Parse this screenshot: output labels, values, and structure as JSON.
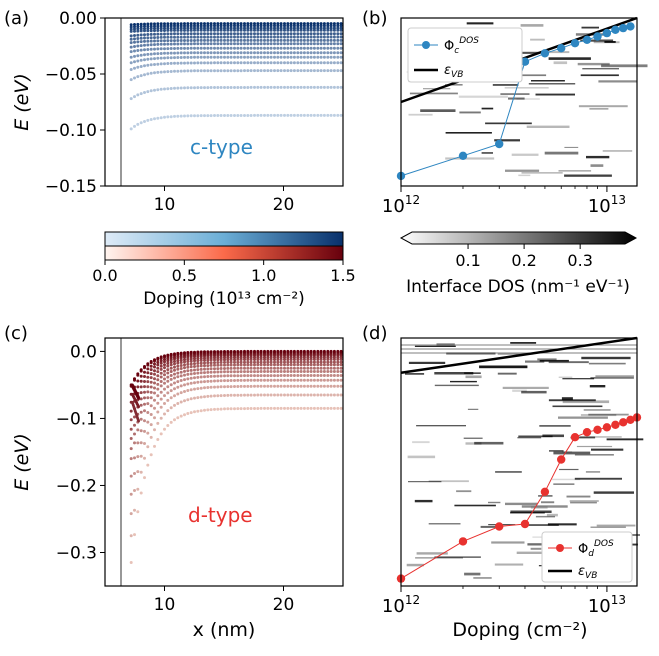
{
  "colors": {
    "ctype": "#2e86c1",
    "dtype": "#e8322f",
    "blue_dark": "#08306b",
    "blue_light": "#d6e6f4",
    "red_dark": "#67000d",
    "red_light": "#fde4d6",
    "vb_line": "#000000"
  },
  "panels": {
    "a": {
      "label": "(a)",
      "ylabel": "E (eV)",
      "yticks": [
        "0.00",
        "−0.05",
        "−0.10",
        "−0.15"
      ],
      "xticks": [
        "10",
        "20"
      ],
      "annotation": "c-type"
    },
    "b": {
      "label": "(b)"
    },
    "c": {
      "label": "(c)",
      "ylabel": "E (eV)",
      "xlabel": "x (nm)",
      "yticks": [
        "0.0",
        "−0.1",
        "−0.2",
        "−0.3"
      ],
      "xticks": [
        "10",
        "20"
      ],
      "annotation": "d-type"
    },
    "d": {
      "label": "(d)",
      "xlabel": "Doping (cm⁻²)"
    }
  },
  "colorbars": {
    "doping": {
      "label": "Doping (10¹³ cm⁻²)",
      "ticks": [
        "0.0",
        "0.5",
        "1.0",
        "1.5"
      ]
    },
    "dos": {
      "label": "Interface DOS (nm⁻¹ eV⁻¹)",
      "ticks": [
        "0.1",
        "0.2",
        "0.3"
      ]
    }
  },
  "log_ticks": {
    "base": "10",
    "exp_low": "12",
    "exp_high": "13"
  },
  "chart_data": [
    {
      "id": "a",
      "type": "scatter",
      "xlabel": "",
      "ylabel": "E (eV)",
      "xlim": [
        5,
        25
      ],
      "ylim": [
        -0.15,
        0.0
      ],
      "doping_values": [
        0.1,
        0.2,
        0.3,
        0.4,
        0.5,
        0.6,
        0.7,
        0.8,
        0.9,
        1.0,
        1.1,
        1.2,
        1.3,
        1.4,
        1.5
      ],
      "plateau_energy": [
        -0.087,
        -0.062,
        -0.047,
        -0.04,
        -0.035,
        -0.031,
        -0.027,
        -0.023,
        -0.02,
        -0.017,
        -0.014,
        -0.011,
        -0.009,
        -0.007,
        -0.005
      ],
      "vertical_line_x": 6.5,
      "annotation": "c-type"
    },
    {
      "id": "b",
      "type": "line",
      "xscale": "log",
      "xlim": [
        1000000000000.0,
        14000000000000.0
      ],
      "series": [
        {
          "name": "Φc DOS",
          "x": [
            1000000000000.0,
            2000000000000.0,
            3000000000000.0,
            4000000000000.0,
            5000000000000.0,
            6000000000000.0,
            7000000000000.0,
            8000000000000.0,
            9000000000000.0,
            10000000000000.0,
            11000000000000.0,
            12000000000000.0,
            13000000000000.0
          ],
          "y": [
            0.06,
            0.18,
            0.25,
            0.74,
            0.79,
            0.82,
            0.85,
            0.87,
            0.89,
            0.91,
            0.93,
            0.94,
            0.95
          ]
        },
        {
          "name": "εVB",
          "x": [
            1000000000000.0,
            14000000000000.0
          ],
          "y": [
            0.5,
            1.0
          ]
        }
      ],
      "legend_position": "top-left"
    },
    {
      "id": "c",
      "type": "scatter",
      "xlabel": "x (nm)",
      "ylabel": "E (eV)",
      "xlim": [
        5,
        25
      ],
      "ylim": [
        -0.35,
        0.02
      ],
      "doping_values": [
        0.1,
        0.2,
        0.3,
        0.4,
        0.5,
        0.6,
        0.7,
        0.8,
        0.9,
        1.0,
        1.1,
        1.2,
        1.3,
        1.4,
        1.5
      ],
      "plateau_energy": [
        -0.085,
        -0.065,
        -0.052,
        -0.043,
        -0.036,
        -0.03,
        -0.025,
        -0.02,
        -0.016,
        -0.012,
        -0.009,
        -0.006,
        -0.004,
        -0.002,
        0.0
      ],
      "vertical_line_x": 6.5,
      "annotation": "d-type"
    },
    {
      "id": "d",
      "type": "line",
      "xscale": "log",
      "xlabel": "Doping (cm⁻²)",
      "xlim": [
        1000000000000.0,
        14000000000000.0
      ],
      "series": [
        {
          "name": "Φd DOS",
          "x": [
            1000000000000.0,
            2000000000000.0,
            3000000000000.0,
            4000000000000.0,
            5000000000000.0,
            6000000000000.0,
            7000000000000.0,
            8000000000000.0,
            9000000000000.0,
            10000000000000.0,
            11000000000000.0,
            12000000000000.0,
            13000000000000.0,
            14000000000000.0
          ],
          "y": [
            0.03,
            0.18,
            0.24,
            0.25,
            0.38,
            0.51,
            0.6,
            0.62,
            0.63,
            0.64,
            0.65,
            0.66,
            0.67,
            0.68
          ]
        },
        {
          "name": "εVB",
          "x": [
            1000000000000.0,
            14000000000000.0
          ],
          "y": [
            0.86,
            1.0
          ]
        }
      ],
      "legend_position": "bottom-right"
    }
  ]
}
